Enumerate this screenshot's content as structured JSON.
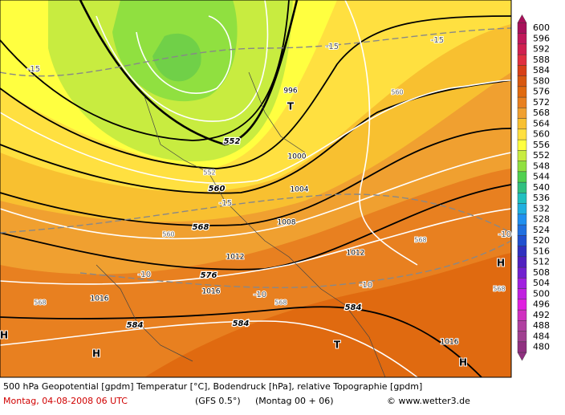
{
  "map": {
    "footer_line1": "500 hPa Geopotential [gpdm] Temperatur [°C], Bodendruck [hPa], relative Topographie [gpdm]",
    "date": "Montag, 04-08-2008  06 UTC",
    "model": "(GFS 0.5°)",
    "run": "(Montag 00 + 06)",
    "credit": "© www.wetter3.de",
    "legend": {
      "levels": [
        600,
        596,
        592,
        588,
        584,
        580,
        576,
        572,
        568,
        564,
        560,
        556,
        552,
        548,
        544,
        540,
        536,
        532,
        528,
        524,
        520,
        516,
        512,
        508,
        504,
        500,
        496,
        492,
        488,
        484,
        480
      ],
      "colors": [
        "#a8105a",
        "#c0185a",
        "#d02050",
        "#e03040",
        "#d84018",
        "#d85810",
        "#e06a10",
        "#e88020",
        "#f0a030",
        "#f8c030",
        "#ffe040",
        "#ffff40",
        "#c8ec40",
        "#90e040",
        "#50d050",
        "#30c080",
        "#20c0c0",
        "#20b0e0",
        "#2090f0",
        "#2070e0",
        "#2050d0",
        "#3030c0",
        "#5020c0",
        "#7020d0",
        "#a020e0",
        "#c020e0",
        "#e020e0",
        "#d030c0",
        "#b040a0",
        "#a04090",
        "#903080"
      ]
    },
    "labels": [
      "552",
      "560",
      "568",
      "576",
      "584",
      "584",
      "584",
      "996",
      "1000",
      "1004",
      "1008",
      "1012",
      "1012",
      "1016",
      "1016",
      "1016",
      "-15",
      "-15",
      "-15",
      "-15",
      "-10",
      "-10",
      "-10",
      "-10",
      "T",
      "T",
      "H",
      "H",
      "H",
      "H",
      "552",
      "560",
      "560",
      "568",
      "568",
      "568",
      "568"
    ]
  }
}
